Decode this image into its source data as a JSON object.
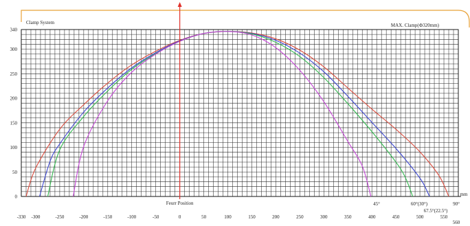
{
  "header": {
    "left_label": "Clamp System",
    "right_label": "MAX. Clamp(Ф320mm)"
  },
  "chart_data": {
    "type": "line",
    "title": "",
    "xlabel": "",
    "ylabel": "",
    "x_unit": "mm",
    "xlim": [
      -330,
      580
    ],
    "ylim": [
      0,
      340
    ],
    "x_ticks": [
      -330,
      -300,
      -250,
      -200,
      -150,
      -100,
      -50,
      0,
      50,
      100,
      150,
      200,
      250,
      300,
      350,
      400,
      450,
      500,
      550
    ],
    "y_ticks": [
      0,
      50,
      100,
      150,
      200,
      250,
      300,
      340
    ],
    "grid": true,
    "center_marker": {
      "x": 0,
      "label": "Feurr Position"
    },
    "series": [
      {
        "name": "90°",
        "color": "#d94b3c",
        "x": [
          -320,
          -300,
          -250,
          -200,
          -150,
          -100,
          -50,
          0,
          50,
          100,
          150,
          200,
          250,
          300,
          350,
          400,
          450,
          500,
          540,
          560
        ],
        "y": [
          0,
          58,
          137,
          187,
          231,
          268,
          296,
          318,
          332,
          336,
          333,
          321,
          298,
          264,
          221,
          178,
          137,
          91,
          42,
          0
        ]
      },
      {
        "name": "67.5°(22.5°)",
        "color": "#3b46cf",
        "x": [
          -292,
          -270,
          -250,
          -200,
          -150,
          -100,
          -50,
          0,
          50,
          100,
          150,
          200,
          250,
          300,
          350,
          400,
          450,
          480,
          505,
          520
        ],
        "y": [
          0,
          72,
          107,
          172,
          221,
          262,
          293,
          317,
          332,
          336,
          332,
          318,
          292,
          254,
          204,
          151,
          98,
          63,
          30,
          0
        ]
      },
      {
        "name": "60°(30°)",
        "color": "#33b84f",
        "x": [
          -275,
          -250,
          -200,
          -150,
          -100,
          -50,
          0,
          50,
          100,
          150,
          200,
          250,
          300,
          350,
          400,
          450,
          470,
          485
        ],
        "y": [
          0,
          95,
          163,
          215,
          259,
          291,
          316,
          332,
          336,
          331,
          314,
          285,
          242,
          189,
          132,
          70,
          38,
          0
        ]
      },
      {
        "name": "45°",
        "color": "#c444d6",
        "x": [
          -222,
          -200,
          -150,
          -100,
          -50,
          0,
          50,
          100,
          150,
          200,
          250,
          300,
          350,
          380,
          398
        ],
        "y": [
          0,
          102,
          195,
          253,
          290,
          316,
          332,
          336,
          329,
          303,
          257,
          193,
          112,
          62,
          0
        ]
      }
    ],
    "end_labels": [
      "45°",
      "60°(30°)",
      "90°",
      "67.5°(22.5°)",
      "560",
      "mm"
    ]
  },
  "colors": {
    "grid": "#2a2a2a",
    "frame": "#e8a238",
    "marker": "#e0302a"
  }
}
